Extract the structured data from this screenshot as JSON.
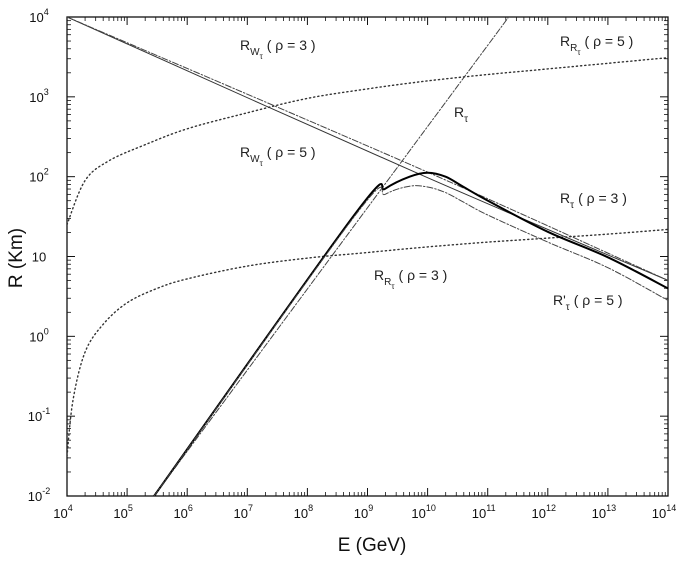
{
  "chart_data": {
    "type": "line",
    "title": "",
    "xlabel": "E (GeV)",
    "ylabel": "R (Km)",
    "xscale": "log",
    "yscale": "log",
    "xlim": [
      10000,
      100000000000000
    ],
    "ylim": [
      0.01,
      10000
    ],
    "grid": false,
    "x_ticks": [
      {
        "exp": 4,
        "label": "10",
        "sup": "4"
      },
      {
        "exp": 5,
        "label": "10",
        "sup": "5"
      },
      {
        "exp": 6,
        "label": "10",
        "sup": "6"
      },
      {
        "exp": 7,
        "label": "10",
        "sup": "7"
      },
      {
        "exp": 8,
        "label": "10",
        "sup": "8"
      },
      {
        "exp": 9,
        "label": "10",
        "sup": "9"
      },
      {
        "exp": 10,
        "label": "10",
        "sup": "10"
      },
      {
        "exp": 11,
        "label": "10",
        "sup": "11"
      },
      {
        "exp": 12,
        "label": "10",
        "sup": "12"
      },
      {
        "exp": 13,
        "label": "10",
        "sup": "13"
      },
      {
        "exp": 14,
        "label": "10",
        "sup": "14"
      }
    ],
    "y_ticks": [
      {
        "exp": -2,
        "label": "10",
        "sup": "-2"
      },
      {
        "exp": -1,
        "label": "10",
        "sup": "-1"
      },
      {
        "exp": 0,
        "label": "10",
        "sup": "0"
      },
      {
        "exp": 1,
        "label": "10",
        "sup": ""
      },
      {
        "exp": 2,
        "label": "10",
        "sup": "2"
      },
      {
        "exp": 3,
        "label": "10",
        "sup": "3"
      },
      {
        "exp": 4,
        "label": "10",
        "sup": "4"
      }
    ],
    "series": [
      {
        "name": "R_W_tau (rho=3)",
        "style": "solid-thin",
        "log_x": [
          4.0,
          9.9,
          14.0
        ],
        "log_y": [
          4.0,
          2.02,
          0.7
        ]
      },
      {
        "name": "R_W_tau (rho=5)",
        "style": "dashdot",
        "log_x": [
          4.0,
          9.9,
          14.0
        ],
        "log_y": [
          4.0,
          2.09,
          0.7
        ]
      },
      {
        "name": "R_tau",
        "style": "dashdot",
        "log_x": [
          5.45,
          11.35
        ],
        "log_y": [
          -2.0,
          4.0
        ]
      },
      {
        "name": "R_R_tau (rho=5)",
        "style": "dotted",
        "log_x": [
          4.0,
          4.3,
          4.7,
          5.3,
          6.0,
          7.0,
          8.0,
          9.0,
          10.0,
          11.0,
          12.0,
          13.0,
          14.0
        ],
        "log_y": [
          1.4,
          1.95,
          2.2,
          2.4,
          2.6,
          2.8,
          2.98,
          3.1,
          3.2,
          3.28,
          3.35,
          3.42,
          3.49
        ]
      },
      {
        "name": "R_R_tau (rho=3)",
        "style": "dotted",
        "log_x": [
          4.0,
          4.1,
          4.3,
          4.6,
          5.0,
          5.5,
          6.0,
          7.0,
          8.0,
          9.0,
          10.0,
          11.0,
          12.0,
          13.0,
          14.0
        ],
        "log_y": [
          -1.5,
          -0.8,
          -0.2,
          0.15,
          0.42,
          0.6,
          0.72,
          0.88,
          0.98,
          1.05,
          1.12,
          1.18,
          1.23,
          1.28,
          1.34
        ]
      },
      {
        "name": "R_tau (rho=3)",
        "style": "solid-thick",
        "log_x": [
          5.45,
          8.8,
          9.3,
          9.7,
          10.0,
          10.3,
          10.6,
          11.0,
          12.0,
          13.0,
          14.0
        ],
        "log_y": [
          -2.0,
          1.54,
          1.85,
          2.0,
          2.05,
          2.0,
          1.87,
          1.7,
          1.31,
          0.99,
          0.6
        ]
      },
      {
        "name": "R'_tau (rho=5)",
        "style": "dashdot",
        "log_x": [
          5.45,
          8.8,
          9.3,
          9.7,
          10.0,
          10.3,
          10.6,
          11.0,
          12.0,
          13.0,
          14.0
        ],
        "log_y": [
          -2.0,
          1.52,
          1.78,
          1.88,
          1.87,
          1.8,
          1.68,
          1.52,
          1.18,
          0.86,
          0.45
        ]
      }
    ],
    "annotations": [
      {
        "id": "rw3",
        "base": "R",
        "sub": "W",
        "subsub": "τ",
        "text": "( ρ = 3 )"
      },
      {
        "id": "rw5",
        "base": "R",
        "sub": "W",
        "subsub": "τ",
        "text": "( ρ = 5 )"
      },
      {
        "id": "rt",
        "base": "R",
        "sub": "τ",
        "subsub": "",
        "text": ""
      },
      {
        "id": "rr5",
        "base": "R",
        "sub": "R",
        "subsub": "τ",
        "text": "( ρ = 5 )"
      },
      {
        "id": "rt3",
        "base": "R",
        "sub": "τ",
        "subsub": "",
        "text": "( ρ = 3 )"
      },
      {
        "id": "rr3",
        "base": "R",
        "sub": "R",
        "subsub": "τ",
        "text": "( ρ = 3 )"
      },
      {
        "id": "rtp5",
        "base": "R'",
        "sub": "τ",
        "subsub": "",
        "text": "( ρ = 5 )"
      }
    ]
  }
}
